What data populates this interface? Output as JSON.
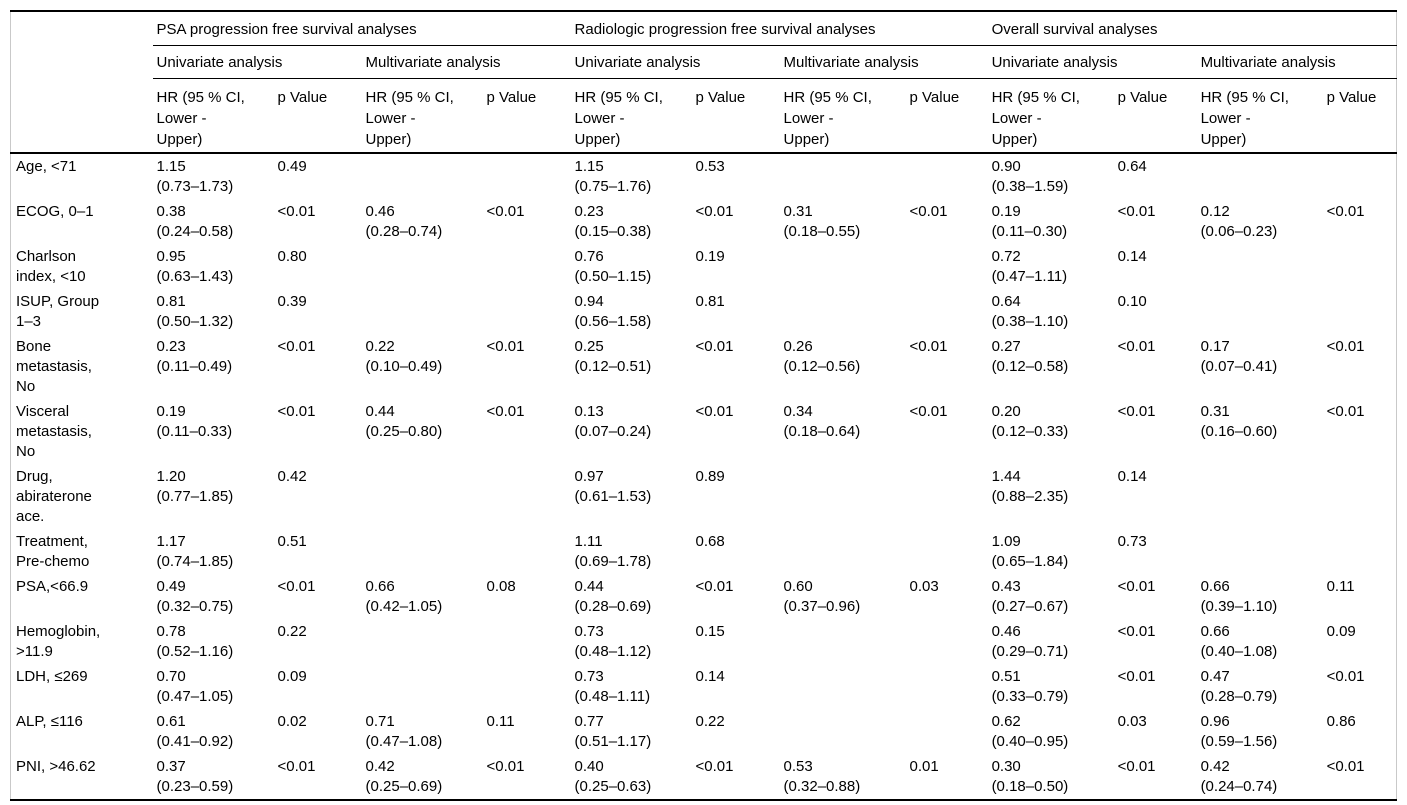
{
  "table": {
    "groups": [
      "PSA progression free survival analyses",
      "Radiologic progression free survival analyses",
      "Overall survival analyses"
    ],
    "analysis_headers": [
      "Univariate analysis",
      "Multivariate analysis"
    ],
    "col_headers": [
      "HR (95 % CI,\nLower -\nUpper)",
      "p Value"
    ],
    "rows": [
      {
        "label": "Age, <71",
        "cells": [
          "1.15\n(0.73–1.73)",
          "0.49",
          "",
          "",
          "1.15\n(0.75–1.76)",
          "0.53",
          "",
          "",
          "0.90\n(0.38–1.59)",
          "0.64",
          "",
          ""
        ]
      },
      {
        "label": "ECOG, 0–1",
        "cells": [
          "0.38\n(0.24–0.58)",
          "<0.01",
          "0.46\n(0.28–0.74)",
          "<0.01",
          "0.23\n(0.15–0.38)",
          "<0.01",
          "0.31\n(0.18–0.55)",
          "<0.01",
          "0.19\n(0.11–0.30)",
          "<0.01",
          "0.12\n(0.06–0.23)",
          "<0.01"
        ]
      },
      {
        "label": "Charlson\nindex, <10",
        "cells": [
          "0.95\n(0.63–1.43)",
          "0.80",
          "",
          "",
          "0.76\n(0.50–1.15)",
          "0.19",
          "",
          "",
          "0.72\n(0.47–1.11)",
          "0.14",
          "",
          ""
        ]
      },
      {
        "label": "ISUP, Group\n1–3",
        "cells": [
          "0.81\n(0.50–1.32)",
          "0.39",
          "",
          "",
          "0.94\n(0.56–1.58)",
          "0.81",
          "",
          "",
          "0.64\n(0.38–1.10)",
          "0.10",
          "",
          ""
        ]
      },
      {
        "label": "Bone\nmetastasis,\nNo",
        "cells": [
          "0.23\n(0.11–0.49)",
          "<0.01",
          "0.22\n(0.10–0.49)",
          "<0.01",
          "0.25\n(0.12–0.51)",
          "<0.01",
          "0.26\n(0.12–0.56)",
          "<0.01",
          "0.27\n(0.12–0.58)",
          "<0.01",
          "0.17\n(0.07–0.41)",
          "<0.01"
        ]
      },
      {
        "label": "Visceral\nmetastasis,\nNo",
        "cells": [
          "0.19\n(0.11–0.33)",
          "<0.01",
          "0.44\n(0.25–0.80)",
          "<0.01",
          "0.13\n(0.07–0.24)",
          "<0.01",
          "0.34\n(0.18–0.64)",
          "<0.01",
          "0.20\n(0.12–0.33)",
          "<0.01",
          "0.31\n(0.16–0.60)",
          "<0.01"
        ]
      },
      {
        "label": "Drug,\nabiraterone\nace.",
        "cells": [
          "1.20\n(0.77–1.85)",
          "0.42",
          "",
          "",
          "0.97\n(0.61–1.53)",
          "0.89",
          "",
          "",
          "1.44\n(0.88–2.35)",
          "0.14",
          "",
          ""
        ]
      },
      {
        "label": "Treatment,\nPre-chemo",
        "cells": [
          "1.17\n(0.74–1.85)",
          "0.51",
          "",
          "",
          "1.11\n(0.69–1.78)",
          "0.68",
          "",
          "",
          "1.09\n(0.65–1.84)",
          "0.73",
          "",
          ""
        ]
      },
      {
        "label": "PSA,<66.9",
        "cells": [
          "0.49\n(0.32–0.75)",
          "<0.01",
          "0.66\n(0.42–1.05)",
          "0.08",
          "0.44\n(0.28–0.69)",
          "<0.01",
          "0.60\n(0.37–0.96)",
          "0.03",
          "0.43\n(0.27–0.67)",
          "<0.01",
          "0.66\n(0.39–1.10)",
          "0.11"
        ]
      },
      {
        "label": "Hemoglobin,\n>11.9",
        "cells": [
          "0.78\n(0.52–1.16)",
          "0.22",
          "",
          "",
          "0.73\n(0.48–1.12)",
          "0.15",
          "",
          "",
          "0.46\n(0.29–0.71)",
          "<0.01",
          "0.66\n(0.40–1.08)",
          "0.09"
        ]
      },
      {
        "label": "LDH, ≤269",
        "cells": [
          "0.70\n(0.47–1.05)",
          "0.09",
          "",
          "",
          "0.73\n(0.48–1.11)",
          "0.14",
          "",
          "",
          "0.51\n(0.33–0.79)",
          "<0.01",
          "0.47\n(0.28–0.79)",
          "<0.01"
        ]
      },
      {
        "label": "ALP, ≤116",
        "cells": [
          "0.61\n(0.41–0.92)",
          "0.02",
          "0.71\n(0.47–1.08)",
          "0.11",
          "0.77\n(0.51–1.17)",
          "0.22",
          "",
          "",
          "0.62\n(0.40–0.95)",
          "0.03",
          "0.96\n(0.59–1.56)",
          "0.86"
        ]
      },
      {
        "label": "PNI, >46.62",
        "cells": [
          "0.37\n(0.23–0.59)",
          "<0.01",
          "0.42\n(0.25–0.69)",
          "<0.01",
          "0.40\n(0.25–0.63)",
          "<0.01",
          "0.53\n(0.32–0.88)",
          "0.01",
          "0.30\n(0.18–0.50)",
          "<0.01",
          "0.42\n(0.24–0.74)",
          "<0.01"
        ]
      }
    ]
  },
  "colors": {
    "background": "#ffffff",
    "text": "#000000",
    "rule": "#000000",
    "frame_border": "#c9c9c9"
  }
}
